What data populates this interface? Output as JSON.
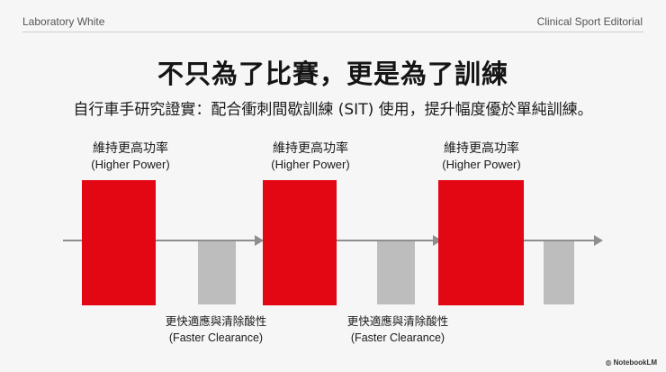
{
  "header": {
    "left": "Laboratory White",
    "right": "Clinical Sport Editorial"
  },
  "title": "不只為了比賽，更是為了訓練",
  "subtitle": "自行車手研究證實：配合衝刺間歇訓練 (SIT) 使用，提升幅度優於單純訓練。",
  "high_labels": [
    {
      "zh": "維持更高功率",
      "en": "(Higher Power)"
    },
    {
      "zh": "維持更高功率",
      "en": "(Higher Power)"
    },
    {
      "zh": "維持更高功率",
      "en": "(Higher Power)"
    }
  ],
  "low_labels": [
    {
      "zh": "更快適應與清除酸性",
      "en": "(Faster Clearance)"
    },
    {
      "zh": "更快適應與清除酸性",
      "en": "(Faster Clearance)"
    }
  ],
  "colors": {
    "high_bar": "#e30613",
    "low_bar": "#bdbdbd",
    "axis": "#8e8e8e"
  },
  "watermark": "NotebookLM"
}
